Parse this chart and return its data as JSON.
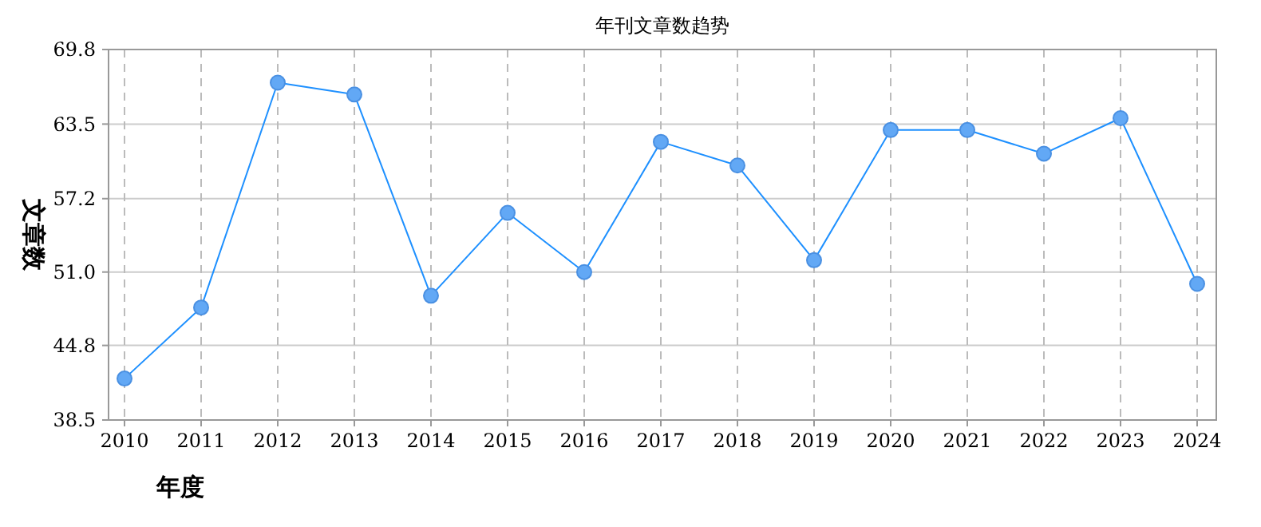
{
  "chart_data": {
    "type": "line",
    "title": "年刊文章数趋势",
    "xlabel": "年度",
    "ylabel": "文章数",
    "categories": [
      "2010",
      "2011",
      "2012",
      "2013",
      "2014",
      "2015",
      "2016",
      "2017",
      "2018",
      "2019",
      "2020",
      "2021",
      "2022",
      "2023",
      "2024"
    ],
    "series": [
      {
        "color": "#1e90ff",
        "values": [
          42,
          48,
          67,
          66,
          49,
          56,
          51,
          62,
          60,
          52,
          63,
          63,
          61,
          64,
          50
        ]
      }
    ],
    "ylim": [
      38.5,
      69.8
    ],
    "yticks": [
      38.5,
      44.8,
      {
        "value": 51,
        "label": "51.0"
      },
      57.2,
      63.5,
      69.8
    ],
    "grid": true,
    "marker": "circle",
    "line_style": "solid"
  }
}
